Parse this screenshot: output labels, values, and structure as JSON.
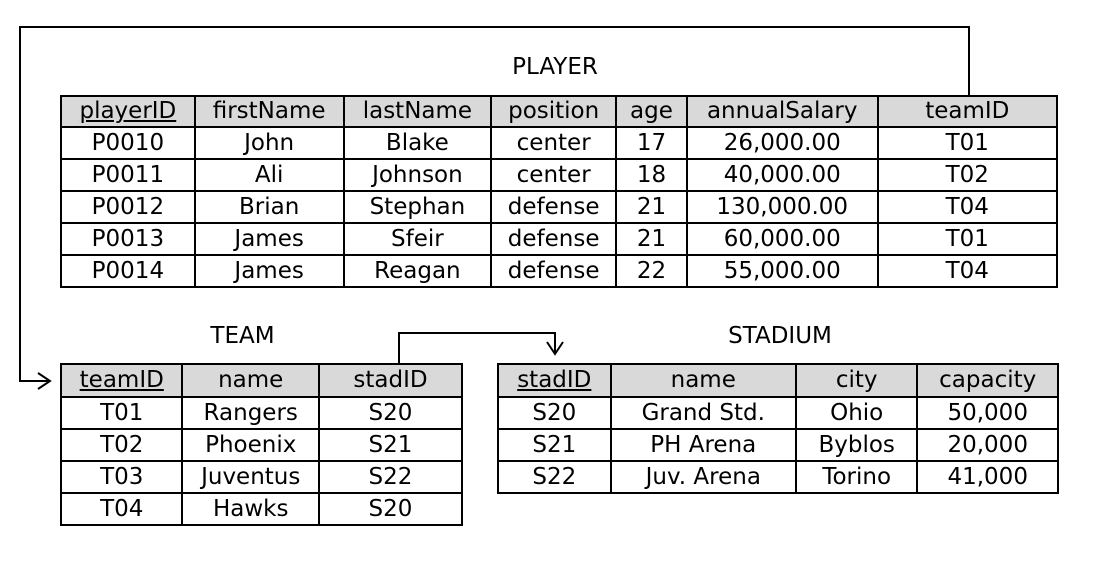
{
  "player": {
    "title": "PLAYER",
    "columns": [
      {
        "label": "playerID",
        "pk": true
      },
      {
        "label": "firstName",
        "pk": false
      },
      {
        "label": "lastName",
        "pk": false
      },
      {
        "label": "position",
        "pk": false
      },
      {
        "label": "age",
        "pk": false
      },
      {
        "label": "annualSalary",
        "pk": false
      },
      {
        "label": "teamID",
        "pk": false
      }
    ],
    "rows": [
      [
        "P0010",
        "John",
        "Blake",
        "center",
        "17",
        "26,000.00",
        "T01"
      ],
      [
        "P0011",
        "Ali",
        "Johnson",
        "center",
        "18",
        "40,000.00",
        "T02"
      ],
      [
        "P0012",
        "Brian",
        "Stephan",
        "defense",
        "21",
        "130,000.00",
        "T04"
      ],
      [
        "P0013",
        "James",
        "Sfeir",
        "defense",
        "21",
        "60,000.00",
        "T01"
      ],
      [
        "P0014",
        "James",
        "Reagan",
        "defense",
        "22",
        "55,000.00",
        "T04"
      ]
    ]
  },
  "team": {
    "title": "TEAM",
    "columns": [
      {
        "label": "teamID",
        "pk": true
      },
      {
        "label": "name",
        "pk": false
      },
      {
        "label": "stadID",
        "pk": false
      }
    ],
    "rows": [
      [
        "T01",
        "Rangers",
        "S20"
      ],
      [
        "T02",
        "Phoenix",
        "S21"
      ],
      [
        "T03",
        "Juventus",
        "S22"
      ],
      [
        "T04",
        "Hawks",
        "S20"
      ]
    ]
  },
  "stadium": {
    "title": "STADIUM",
    "columns": [
      {
        "label": "stadID",
        "pk": true
      },
      {
        "label": "name",
        "pk": false
      },
      {
        "label": "city",
        "pk": false
      },
      {
        "label": "capacity",
        "pk": false
      }
    ],
    "rows": [
      [
        "S20",
        "Grand Std.",
        "Ohio",
        "50,000"
      ],
      [
        "S21",
        "PH Arena",
        "Byblos",
        "20,000"
      ],
      [
        "S22",
        "Juv. Arena",
        "Torino",
        "41,000"
      ]
    ]
  },
  "colors": {
    "header_fill": "#d9d9d9",
    "line": "#000000"
  }
}
